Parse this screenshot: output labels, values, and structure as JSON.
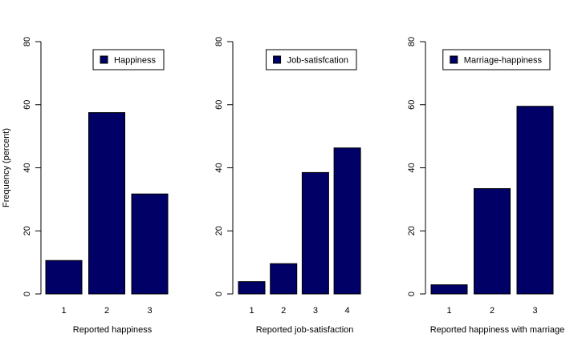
{
  "chart_data": [
    {
      "type": "bar",
      "categories": [
        "1",
        "2",
        "3"
      ],
      "values": [
        10.6,
        57.5,
        31.7
      ],
      "xlabel": "Reported happiness",
      "ylabel": "Frequency (percent)",
      "ylim": [
        0,
        80
      ],
      "yticks": [
        "0",
        "20",
        "40",
        "60",
        "80"
      ],
      "legend": "Happiness",
      "legend_position": "top-right",
      "grid": false,
      "bar_color": "#000066"
    },
    {
      "type": "bar",
      "categories": [
        "1",
        "2",
        "3",
        "4"
      ],
      "values": [
        3.9,
        9.6,
        38.5,
        46.3
      ],
      "xlabel": "Reported job-satisfaction",
      "ylabel": "",
      "ylim": [
        0,
        80
      ],
      "yticks": [
        "0",
        "20",
        "40",
        "60",
        "80"
      ],
      "legend": "Job-satisfcation",
      "legend_position": "top-right",
      "grid": false,
      "bar_color": "#000066"
    },
    {
      "type": "bar",
      "categories": [
        "1",
        "2",
        "3"
      ],
      "values": [
        2.9,
        33.4,
        59.5
      ],
      "xlabel": "Reported happiness with marriage",
      "ylabel": "",
      "ylim": [
        0,
        80
      ],
      "yticks": [
        "0",
        "20",
        "40",
        "60",
        "80"
      ],
      "legend": "Marriage-happiness",
      "legend_position": "top-right",
      "grid": false,
      "bar_color": "#000066"
    }
  ]
}
